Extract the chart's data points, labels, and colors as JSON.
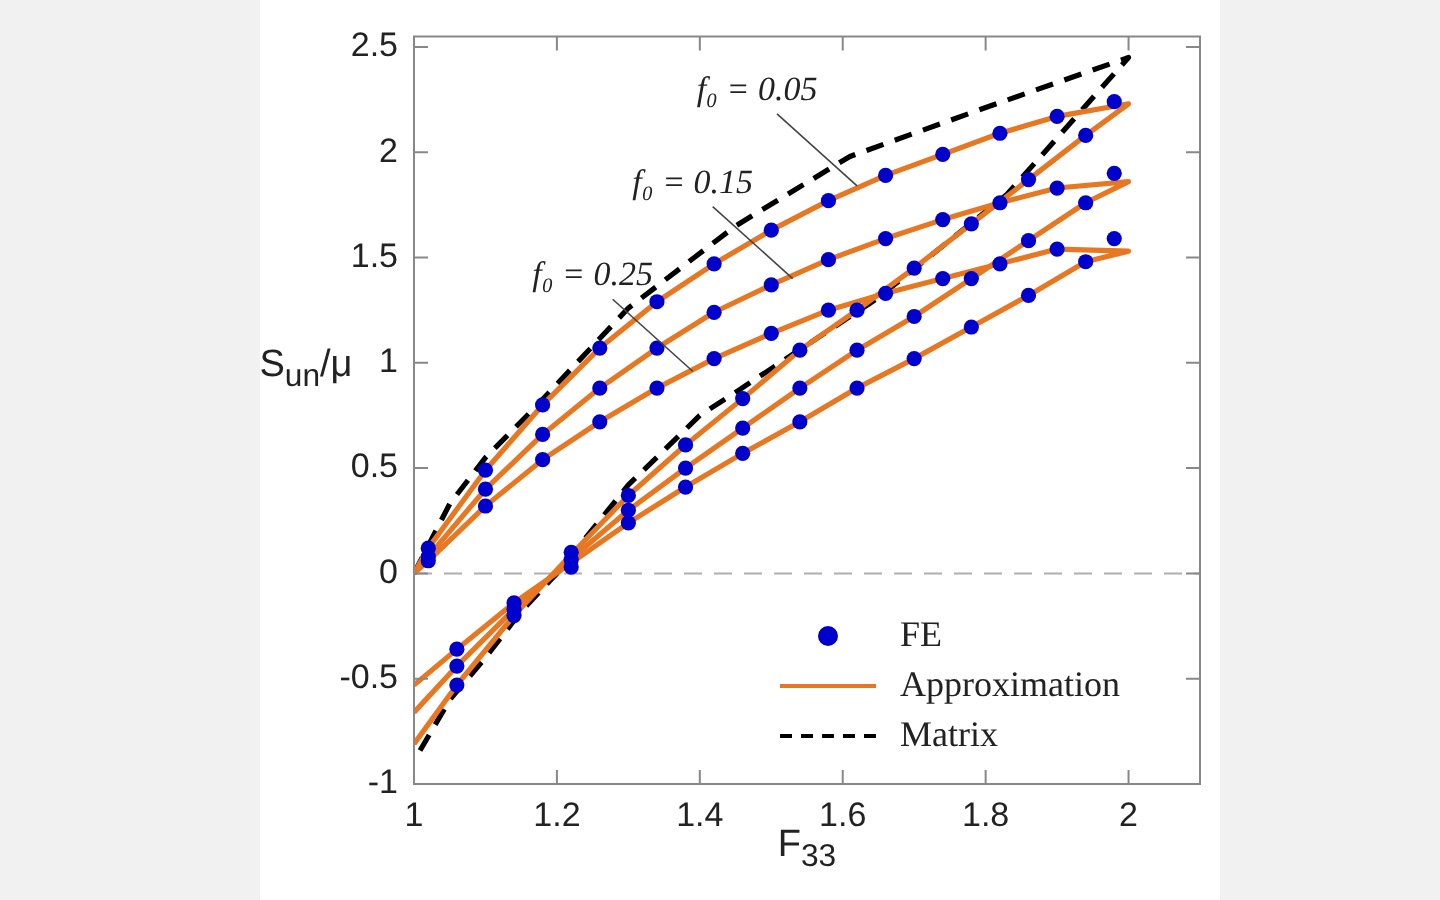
{
  "chart_data": {
    "type": "line",
    "xlabel": "F$_{33}$",
    "ylabel": "S$_{un}$/μ",
    "xlim": [
      1,
      2.1
    ],
    "xticks": [
      1,
      1.2,
      1.4,
      1.6,
      1.8,
      2
    ],
    "ylim": [
      -1,
      2.55
    ],
    "yticks": [
      -1,
      -0.5,
      0,
      0.5,
      1,
      1.5,
      2,
      2.5
    ],
    "grid": false,
    "legend": "bottom right",
    "ref_lines": [
      {
        "axis": "y",
        "value": 0,
        "color": "#b0b0b0",
        "line_style": "dashed"
      }
    ],
    "annotations": [
      {
        "text": "f₀ = 0.05",
        "x": 1.62,
        "y": 1.84
      },
      {
        "text": "f₀ = 0.15",
        "x": 1.53,
        "y": 1.4
      },
      {
        "text": "f₀ = 0.25",
        "x": 1.39,
        "y": 0.96
      }
    ],
    "series": [
      {
        "name": "FE",
        "type": "scatter",
        "marker": "circle",
        "color": "#0000cc",
        "x": [
          1.02,
          1.1,
          1.18,
          1.26,
          1.34,
          1.42,
          1.5,
          1.58,
          1.66,
          1.74,
          1.82,
          1.9,
          1.98,
          1.02,
          1.1,
          1.18,
          1.26,
          1.34,
          1.42,
          1.5,
          1.58,
          1.66,
          1.74,
          1.82,
          1.9,
          1.98,
          1.02,
          1.1,
          1.18,
          1.26,
          1.34,
          1.42,
          1.5,
          1.58,
          1.66,
          1.74,
          1.82,
          1.9,
          1.98,
          1.06,
          1.14,
          1.22,
          1.3,
          1.38,
          1.46,
          1.54,
          1.62,
          1.7,
          1.78,
          1.86,
          1.94,
          1.06,
          1.14,
          1.22,
          1.3,
          1.38,
          1.46,
          1.54,
          1.62,
          1.7,
          1.78,
          1.86,
          1.94,
          1.06,
          1.14,
          1.22,
          1.3,
          1.38,
          1.46,
          1.54,
          1.62,
          1.7,
          1.78,
          1.86,
          1.94
        ],
        "values": [
          0.12,
          0.49,
          0.8,
          1.07,
          1.29,
          1.47,
          1.63,
          1.77,
          1.89,
          1.99,
          2.09,
          2.17,
          2.24,
          0.08,
          0.4,
          0.66,
          0.88,
          1.07,
          1.24,
          1.37,
          1.49,
          1.59,
          1.68,
          1.76,
          1.83,
          1.9,
          0.06,
          0.32,
          0.54,
          0.72,
          0.88,
          1.02,
          1.14,
          1.25,
          1.33,
          1.4,
          1.47,
          1.54,
          1.59,
          -0.53,
          -0.2,
          0.1,
          0.37,
          0.61,
          0.83,
          1.06,
          1.25,
          1.45,
          1.66,
          1.87,
          2.08,
          -0.44,
          -0.17,
          0.065,
          0.3,
          0.5,
          0.69,
          0.88,
          1.06,
          1.22,
          1.4,
          1.58,
          1.76,
          -0.36,
          -0.14,
          0.03,
          0.24,
          0.41,
          0.57,
          0.72,
          0.88,
          1.02,
          1.17,
          1.32,
          1.48
        ]
      },
      {
        "name": "Approximation",
        "type": "line",
        "marker": "none",
        "line_style": "solid",
        "color": "#e87722",
        "x": [
          1,
          1.02,
          1.1,
          1.18,
          1.26,
          1.34,
          1.42,
          1.5,
          1.58,
          1.66,
          1.74,
          1.82,
          1.9,
          2,
          1.94,
          1.86,
          1.78,
          1.7,
          1.62,
          1.54,
          1.46,
          1.38,
          1.3,
          1.22,
          1.14,
          1.06,
          1
        ],
        "values": [
          0,
          0.12,
          0.49,
          0.8,
          1.07,
          1.29,
          1.47,
          1.63,
          1.77,
          1.89,
          1.99,
          2.09,
          2.17,
          2.23,
          2.08,
          1.87,
          1.66,
          1.45,
          1.25,
          1.06,
          0.83,
          0.61,
          0.37,
          0.09,
          -0.2,
          -0.53,
          -0.81
        ]
      },
      {
        "type": "line",
        "marker": "none",
        "line_style": "solid",
        "color": "#e87722",
        "x": [
          1,
          1.02,
          1.1,
          1.18,
          1.26,
          1.34,
          1.42,
          1.5,
          1.58,
          1.66,
          1.74,
          1.82,
          1.9,
          2,
          1.94,
          1.86,
          1.78,
          1.7,
          1.62,
          1.54,
          1.46,
          1.38,
          1.3,
          1.22,
          1.14,
          1.06,
          1
        ],
        "values": [
          0,
          0.08,
          0.4,
          0.66,
          0.88,
          1.07,
          1.24,
          1.37,
          1.49,
          1.59,
          1.68,
          1.76,
          1.83,
          1.86,
          1.76,
          1.58,
          1.4,
          1.22,
          1.06,
          0.88,
          0.69,
          0.5,
          0.3,
          0.07,
          -0.17,
          -0.44,
          -0.66
        ]
      },
      {
        "type": "line",
        "marker": "none",
        "line_style": "solid",
        "color": "#e87722",
        "x": [
          1,
          1.02,
          1.1,
          1.18,
          1.26,
          1.34,
          1.42,
          1.5,
          1.58,
          1.66,
          1.74,
          1.82,
          1.9,
          2,
          1.94,
          1.86,
          1.78,
          1.7,
          1.62,
          1.54,
          1.46,
          1.38,
          1.3,
          1.22,
          1.14,
          1.06,
          1
        ],
        "values": [
          0,
          0.06,
          0.32,
          0.54,
          0.72,
          0.88,
          1.02,
          1.14,
          1.25,
          1.33,
          1.4,
          1.47,
          1.54,
          1.53,
          1.48,
          1.32,
          1.17,
          1.02,
          0.88,
          0.72,
          0.57,
          0.41,
          0.24,
          0.05,
          -0.14,
          -0.36,
          -0.53
        ]
      },
      {
        "name": "Matrix",
        "type": "line",
        "marker": "none",
        "line_style": "dashed",
        "color": "#000000",
        "x": [
          1,
          1.05,
          1.1,
          1.17,
          1.3,
          1.45,
          1.61,
          1.79,
          2,
          1.83,
          1.65,
          1.45,
          1.4,
          1.3,
          1.2,
          1.15,
          1.1,
          1.05,
          1
        ],
        "values": [
          0,
          0.33,
          0.55,
          0.79,
          1.26,
          1.65,
          1.98,
          2.2,
          2.45,
          1.8,
          1.31,
          0.86,
          0.75,
          0.42,
          0,
          -0.18,
          -0.4,
          -0.6,
          -0.89
        ]
      }
    ]
  }
}
